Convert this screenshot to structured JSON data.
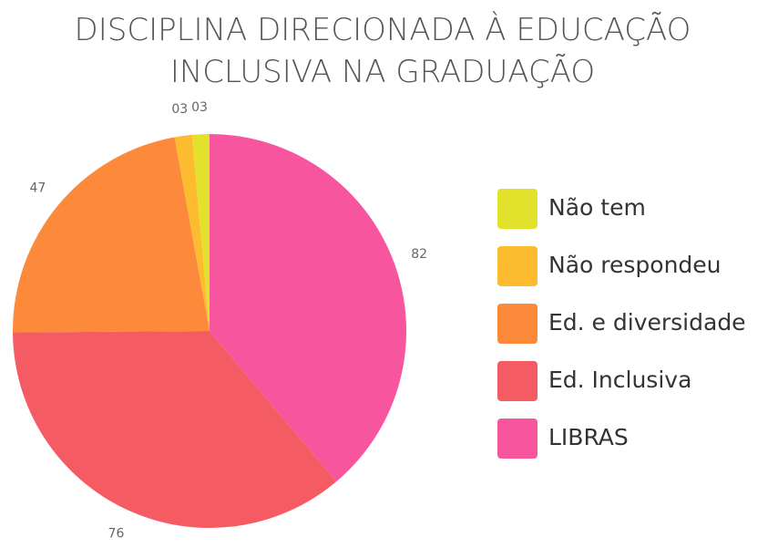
{
  "chart_data": {
    "type": "pie",
    "title": "DISCIPLINA DIRECIONADA À EDUCAÇÃO INCLUSIVA NA GRADUAÇÃO",
    "categories": [
      "Não tem",
      "Não respondeu",
      "Ed. e diversidade",
      "Ed. Inclusiva",
      "LIBRAS"
    ],
    "values": [
      3,
      3,
      47,
      76,
      82
    ],
    "value_labels": [
      "03",
      "03",
      "47",
      "76",
      "82"
    ],
    "colors": [
      "#e2e22c",
      "#fdbb30",
      "#fd8a3b",
      "#f55b63",
      "#f7559e"
    ],
    "legend": "right"
  }
}
